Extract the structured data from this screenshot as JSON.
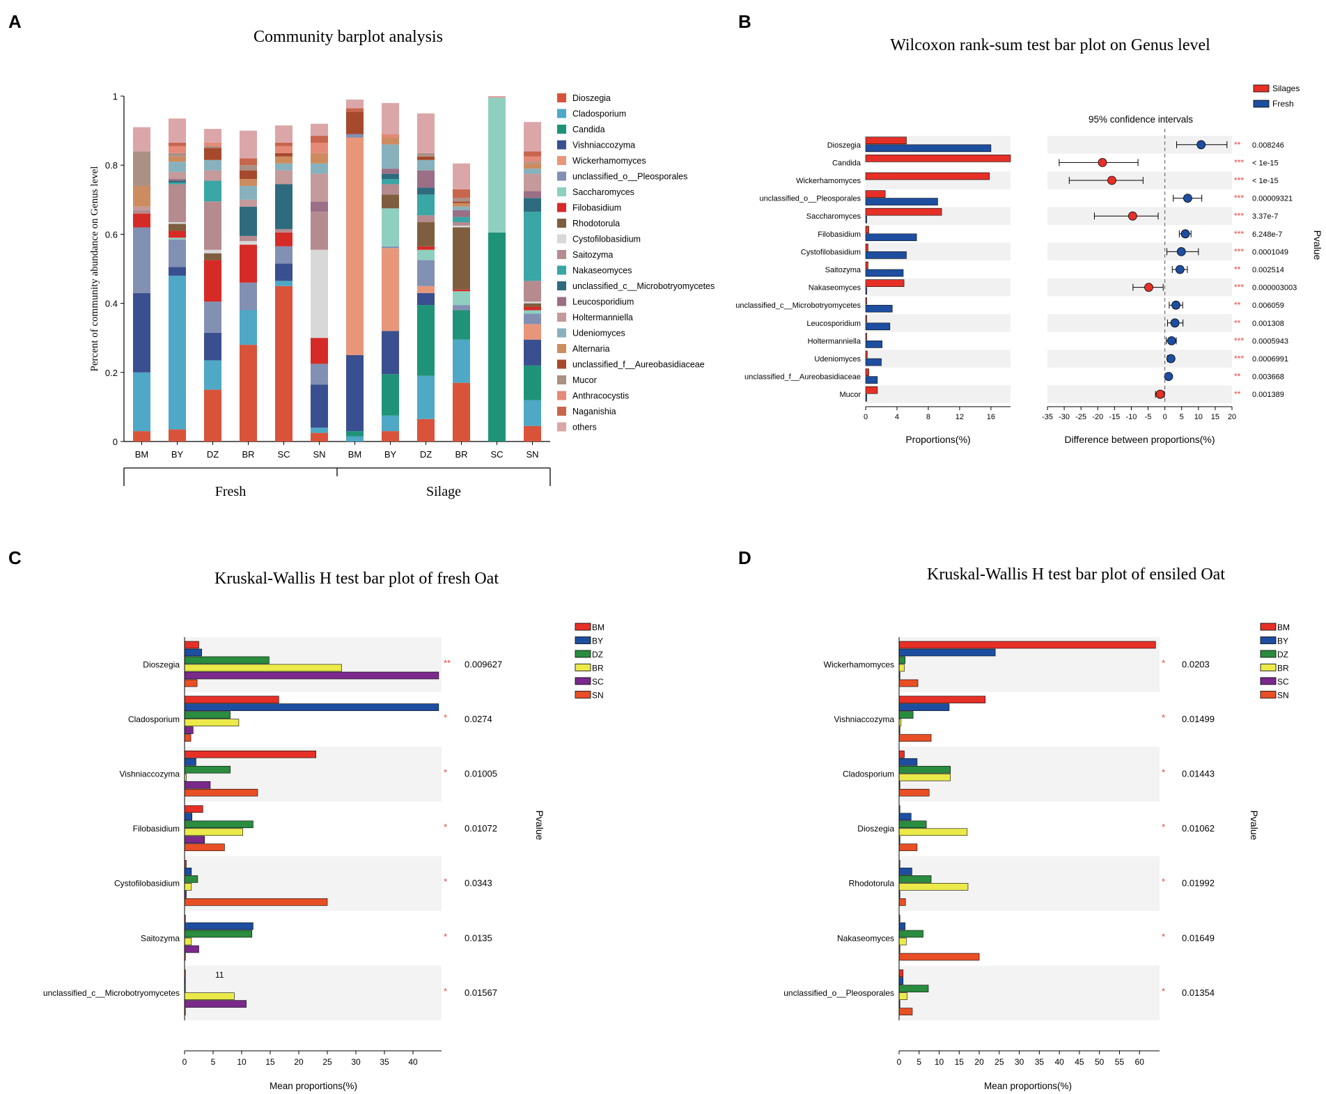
{
  "panels": {
    "A": "A",
    "B": "B",
    "C": "C",
    "D": "D"
  },
  "colors": {
    "genus": [
      "#d9533b",
      "#4ea8c6",
      "#1f9377",
      "#3a4f8f",
      "#e8967a",
      "#8290b4",
      "#8ecfbf",
      "#d62a27",
      "#7e5e3f",
      "#d8d8d8",
      "#b58b8f",
      "#3aa6a5",
      "#2f6b7e",
      "#9b6f86",
      "#c59a9b",
      "#87b2bd",
      "#cd8c5f",
      "#a6492c",
      "#ab9085",
      "#e58978",
      "#c8654d",
      "#dba6a8"
    ],
    "red": "#e63027",
    "blue": "#1d4ea0",
    "green": "#2a8c3e",
    "yellow": "#ecea4a",
    "purple": "#7b2a8c",
    "orange": "#e94f25",
    "star": "#e8453c"
  },
  "chart_data": [
    {
      "id": "A",
      "type": "bar",
      "stacked": true,
      "title": "Community barplot analysis",
      "ylabel": "Percent of community abundance on Genus level",
      "ylim": [
        0,
        1
      ],
      "yticks": [
        "0",
        "0.2",
        "0.4",
        "0.6",
        "0.8",
        "1"
      ],
      "categories": [
        "BM",
        "BY",
        "DZ",
        "BR",
        "SC",
        "SN",
        "BM",
        "BY",
        "DZ",
        "BR",
        "SC",
        "SN"
      ],
      "groups": [
        {
          "label": "Fresh",
          "from": 0,
          "to": 5
        },
        {
          "label": "Silage",
          "from": 6,
          "to": 11
        }
      ],
      "legend": [
        "Dioszegia",
        "Cladosporium",
        "Candida",
        "Vishniaccozyma",
        "Wickerhamomyces",
        "unclassified_o__Pleosporales",
        "Saccharomyces",
        "Filobasidium",
        "Rhodotorula",
        "Cystofilobasidium",
        "Saitozyma",
        "Nakaseomyces",
        "unclassified_c__Microbotryomycetes",
        "Leucosporidium",
        "Holtermanniella",
        "Udeniomyces",
        "Alternaria",
        "unclassified_f__Aureobasidiaceae",
        "Mucor",
        "Anthracocystis",
        "Naganishia",
        "others"
      ],
      "stacks": [
        [
          0.03,
          0.17,
          0,
          0.23,
          0,
          0.19,
          0,
          0.04,
          0,
          0,
          0.01,
          0,
          0,
          0,
          0.01,
          0,
          0.06,
          0,
          0.1,
          0,
          0,
          0.07
        ],
        [
          0.035,
          0.445,
          0,
          0.025,
          0,
          0.08,
          0.005,
          0.02,
          0.02,
          0.005,
          0.11,
          0.005,
          0.005,
          0.005,
          0.02,
          0.03,
          0.015,
          0,
          0.01,
          0.02,
          0.01,
          0.07
        ],
        [
          0.15,
          0.085,
          0,
          0.08,
          0,
          0.09,
          0,
          0.12,
          0.02,
          0.01,
          0.14,
          0.06,
          0,
          0,
          0.03,
          0.03,
          0,
          0.035,
          0.005,
          0.01,
          0,
          0.04
        ],
        [
          0.28,
          0.1,
          0,
          0,
          0,
          0.08,
          0,
          0.11,
          0,
          0.01,
          0.015,
          0,
          0.085,
          0,
          0.02,
          0.04,
          0.02,
          0.025,
          0.015,
          0,
          0.02,
          0.08
        ],
        [
          0.45,
          0.015,
          0,
          0.05,
          0,
          0.05,
          0,
          0.04,
          0,
          0,
          0.01,
          0,
          0.13,
          0,
          0.04,
          0.02,
          0.02,
          0.01,
          0,
          0.02,
          0.01,
          0.05
        ],
        [
          0.025,
          0.015,
          0,
          0.125,
          0,
          0.06,
          0,
          0.075,
          0,
          0.255,
          0.11,
          0,
          0,
          0.03,
          0.08,
          0.03,
          0.03,
          0,
          0,
          0.03,
          0.02,
          0.035
        ],
        [
          0,
          0.015,
          0.015,
          0.22,
          0.63,
          0.01,
          0,
          0,
          0,
          0,
          0,
          0,
          0,
          0,
          0,
          0,
          0,
          0.065,
          0,
          0,
          0.01,
          0.025
        ],
        [
          0.03,
          0.045,
          0.12,
          0.125,
          0.24,
          0.005,
          0.11,
          0,
          0.04,
          0,
          0.03,
          0.015,
          0.015,
          0.015,
          0,
          0.07,
          0.02,
          0,
          0,
          0.01,
          0,
          0.09
        ],
        [
          0.065,
          0.125,
          0.205,
          0.035,
          0.02,
          0.075,
          0.03,
          0.01,
          0.07,
          0,
          0.02,
          0.06,
          0.02,
          0.05,
          0,
          0.03,
          0,
          0.01,
          0.01,
          0,
          0,
          0.115
        ],
        [
          0.17,
          0.125,
          0.085,
          0,
          0,
          0.015,
          0.04,
          0.005,
          0.18,
          0.005,
          0.01,
          0.015,
          0,
          0.02,
          0,
          0.01,
          0.01,
          0.005,
          0.01,
          0,
          0.025,
          0.075
        ],
        [
          0,
          0,
          0.605,
          0,
          0,
          0,
          0.39,
          0,
          0,
          0,
          0,
          0,
          0,
          0,
          0,
          0,
          0,
          0,
          0,
          0,
          0,
          0.005
        ],
        [
          0.045,
          0.075,
          0.1,
          0.075,
          0.045,
          0.03,
          0.01,
          0.01,
          0.01,
          0.005,
          0.06,
          0.2,
          0.04,
          0.02,
          0.05,
          0.015,
          0.015,
          0,
          0.005,
          0.015,
          0.015,
          0.085
        ]
      ]
    },
    {
      "id": "B",
      "type": "bar",
      "title": "Wilcoxon rank-sum test bar plot on Genus level",
      "legend": [
        "Silages",
        "Fresh"
      ],
      "ci_title": "95% confidence intervals",
      "xlabel": "Proportions(%)",
      "xlabel2": "Difference between proportions(%)",
      "plabel": "Pvalue",
      "xlim": [
        0,
        18.5
      ],
      "xticks": [
        0,
        4,
        8,
        12,
        16
      ],
      "diff_xlim": [
        -35,
        20
      ],
      "diff_xticks": [
        -35,
        -30,
        -25,
        -20,
        -15,
        -10,
        -5,
        0,
        5,
        10,
        15,
        20
      ],
      "genera": [
        "Dioszegia",
        "Candida",
        "Wickerhamomyces",
        "unclassified_o__Pleosporales",
        "Saccharomyces",
        "Filobasidium",
        "Cystofilobasidium",
        "Saitozyma",
        "Nakaseomyces",
        "unclassified_c__Microbotryomycetes",
        "Leucosporidium",
        "Holtermanniella",
        "Udeniomyces",
        "unclassified_f__Aureobasidiaceae",
        "Mucor"
      ],
      "silages": [
        5.2,
        18.5,
        15.8,
        2.5,
        9.7,
        0.4,
        0.3,
        0.3,
        4.9,
        0.1,
        0.1,
        0.1,
        0.2,
        0.4,
        1.5
      ],
      "fresh": [
        16,
        0,
        0,
        9.2,
        0.1,
        6.5,
        5.2,
        4.8,
        0.1,
        3.4,
        3.1,
        2.1,
        2,
        1.5,
        0.1
      ],
      "diff": [
        10.8,
        -18.6,
        -15.8,
        6.8,
        -9.6,
        6.1,
        4.9,
        4.5,
        -4.8,
        3.3,
        3.0,
        2.0,
        1.8,
        1.1,
        -1.4
      ],
      "ci_low": [
        3.5,
        -31.5,
        -28.5,
        2.5,
        -21,
        4.3,
        0.6,
        2.2,
        -9.5,
        1.3,
        0.8,
        0.4,
        0.8,
        0.3,
        -2.8
      ],
      "ci_high": [
        18.5,
        -8,
        -6.5,
        11,
        -2,
        7.8,
        10,
        6.7,
        -0.5,
        5.3,
        5.4,
        3.4,
        2.6,
        1.8,
        -0.2
      ],
      "stars": [
        "**",
        "***",
        "***",
        "***",
        "***",
        "***",
        "***",
        "**",
        "***",
        "**",
        "**",
        "***",
        "***",
        "**",
        "**"
      ],
      "pvalues": [
        "0.008246",
        "< 1e-15",
        "< 1e-15",
        "0.00009321",
        "3.37e-7",
        "6.248e-7",
        "0.0001049",
        "0.002514",
        "0.000003003",
        "0.006059",
        "0.001308",
        "0.0005943",
        "0.0006991",
        "0.003668",
        "0.001389"
      ]
    },
    {
      "id": "C",
      "type": "bar",
      "title": "Kruskal-Wallis H test bar plot of fresh Oat",
      "xlabel": "Mean proportions(%)",
      "plabel": "Pvalue",
      "xlim": [
        0,
        45
      ],
      "xticks": [
        0,
        5,
        10,
        15,
        20,
        25,
        30,
        35,
        40
      ],
      "series_names": [
        "BM",
        "BY",
        "DZ",
        "BR",
        "SC",
        "SN"
      ],
      "annotation": "11",
      "genera": [
        "Dioszegia",
        "Cladosporium",
        "Vishniaccozyma",
        "Filobasidium",
        "Cystofilobasidium",
        "Saitozyma",
        "unclassified_c__Microbotryomycetes"
      ],
      "values": [
        [
          2.5,
          3,
          14.8,
          27.5,
          44.5,
          2.2
        ],
        [
          16.5,
          44.5,
          8,
          9.5,
          1.5,
          1.1
        ],
        [
          23,
          2,
          8,
          0.3,
          4.5,
          12.8
        ],
        [
          3.2,
          1.3,
          12,
          10.2,
          3.5,
          7
        ],
        [
          0.3,
          1.2,
          2.3,
          1.2,
          0.3,
          25
        ],
        [
          0,
          12,
          11.8,
          1.2,
          2.5,
          0
        ],
        [
          0,
          0,
          0,
          8.7,
          10.8,
          0
        ]
      ],
      "stars": [
        "**",
        "*",
        "*",
        "*",
        "*",
        "*",
        "*"
      ],
      "pvalues": [
        "0.009627",
        "0.0274",
        "0.01005",
        "0.01072",
        "0.0343",
        "0.0135",
        "0.01567"
      ]
    },
    {
      "id": "D",
      "type": "bar",
      "title": "Kruskal-Wallis H test bar plot of ensiled Oat",
      "xlabel": "Mean proportions(%)",
      "plabel": "Pvalue",
      "xlim": [
        0,
        65
      ],
      "xticks": [
        0,
        5,
        10,
        15,
        20,
        25,
        30,
        35,
        40,
        45,
        50,
        55,
        60
      ],
      "series_names": [
        "BM",
        "BY",
        "DZ",
        "BR",
        "SC",
        "SN"
      ],
      "genera": [
        "Wickerhamomyces",
        "Vishniaccozyma",
        "Cladosporium",
        "Dioszegia",
        "Rhodotorula",
        "Nakaseomyces",
        "unclassified_o__Pleosporales"
      ],
      "values": [
        [
          64,
          24,
          1.5,
          1.3,
          0.1,
          4.7
        ],
        [
          21.5,
          12.5,
          3.5,
          0.5,
          0,
          8
        ],
        [
          1.3,
          4.5,
          12.8,
          12.8,
          0,
          7.5
        ],
        [
          0,
          3,
          6.8,
          17,
          0,
          4.5
        ],
        [
          0,
          3.2,
          8,
          17.2,
          0,
          1.6
        ],
        [
          0,
          1.5,
          6,
          1.8,
          0,
          20
        ],
        [
          1,
          1,
          7.3,
          2,
          0,
          3.3
        ]
      ],
      "stars": [
        "*",
        "*",
        "*",
        "*",
        "*",
        "*",
        "*"
      ],
      "pvalues": [
        "0.0203",
        "0.01499",
        "0.01443",
        "0.01062",
        "0.01992",
        "0.01649",
        "0.01354"
      ]
    }
  ]
}
